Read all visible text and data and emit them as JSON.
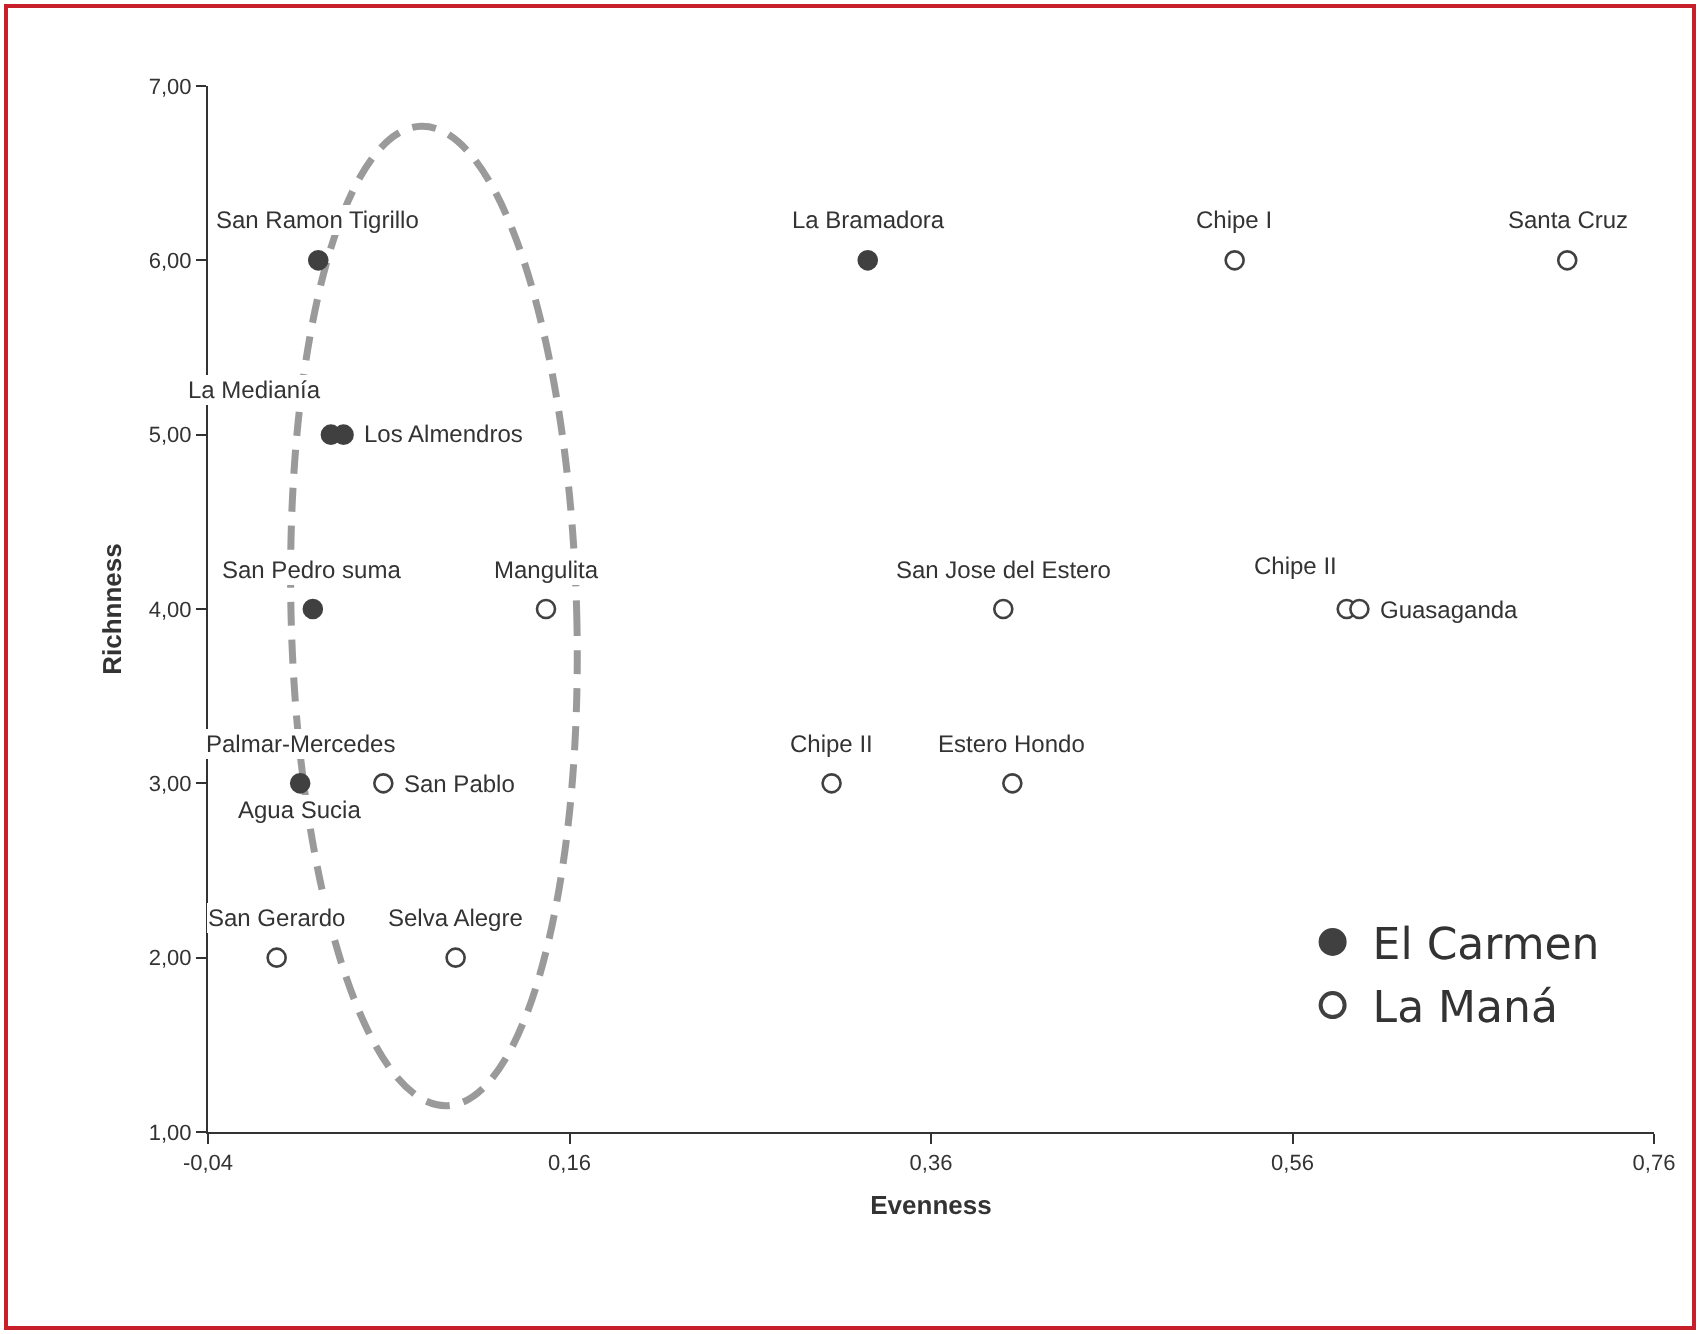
{
  "chart_data": {
    "type": "scatter",
    "xlabel": "Evenness",
    "ylabel": "Richnness",
    "series": [
      {
        "name": "El Carmen",
        "color": "#404040",
        "marker": "circle",
        "x": [
          0.021,
          0.028,
          0.035,
          0.018,
          0.011,
          0.325
        ],
        "values": [
          6,
          5,
          5,
          4,
          3,
          6
        ]
      },
      {
        "name": "La Maná",
        "color": "#404040",
        "marker": "circle",
        "x": [
          0.147,
          0.057,
          -0.002,
          0.097,
          0.528,
          0.712,
          0.4,
          0.59,
          0.597,
          0.305,
          0.405
        ],
        "values": [
          4,
          3,
          2,
          2,
          6,
          6,
          4,
          4,
          4,
          3,
          3
        ]
      }
    ],
    "annotations": [
      {
        "text": "San Ramon Tigrillo",
        "x": 0.021,
        "y": 6
      },
      {
        "text": "La Medianía",
        "x": 0.028,
        "y": 5
      },
      {
        "text": "Los Almendros",
        "x": 0.035,
        "y": 5
      },
      {
        "text": "San Pedro suma",
        "x": 0.018,
        "y": 4
      },
      {
        "text": "Mangulita",
        "x": 0.147,
        "y": 4
      },
      {
        "text": "Palmar-Mercedes",
        "x": 0.011,
        "y": 3
      },
      {
        "text": "Agua Sucia",
        "x": 0.011,
        "y": 3
      },
      {
        "text": "San Pablo",
        "x": 0.057,
        "y": 3
      },
      {
        "text": "San Gerardo",
        "x": -0.002,
        "y": 2
      },
      {
        "text": "Selva Alegre",
        "x": 0.097,
        "y": 2
      },
      {
        "text": "La Bramadora",
        "x": 0.325,
        "y": 6
      },
      {
        "text": "Chipe I",
        "x": 0.528,
        "y": 6
      },
      {
        "text": "Santa Cruz",
        "x": 0.712,
        "y": 6
      },
      {
        "text": "San Jose del Estero",
        "x": 0.4,
        "y": 4
      },
      {
        "text": "Chipe II",
        "x": 0.59,
        "y": 4
      },
      {
        "text": "Guasaganda",
        "x": 0.597,
        "y": 4
      },
      {
        "text": "Chipe II",
        "x": 0.305,
        "y": 3
      },
      {
        "text": "Estero Hondo",
        "x": 0.405,
        "y": 3
      }
    ],
    "xlim": [
      -0.04,
      0.76
    ],
    "xticks": [
      {
        "value": -0.04,
        "label": "-0,04"
      },
      {
        "value": 0.16,
        "label": "0,16"
      },
      {
        "value": 0.36,
        "label": "0,36"
      },
      {
        "value": 0.56,
        "label": "0,56"
      },
      {
        "value": 0.76,
        "label": "0,76"
      }
    ],
    "ylim": [
      1,
      7
    ],
    "yticks": [
      {
        "value": 1,
        "label": "1,00"
      },
      {
        "value": 2,
        "label": "2,00"
      },
      {
        "value": 3,
        "label": "3,00"
      },
      {
        "value": 4,
        "label": "4,00"
      },
      {
        "value": 5,
        "label": "5,00"
      },
      {
        "value": 6,
        "label": "6,00"
      },
      {
        "value": 7,
        "label": "7,00"
      }
    ],
    "grid": false,
    "legend": "bottom right"
  }
}
